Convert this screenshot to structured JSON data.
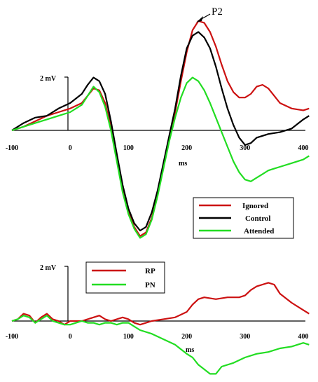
{
  "chart_data": [
    {
      "type": "line",
      "annotation": "P2",
      "y_scale_label": "2 mV",
      "xlabel": "ms",
      "xlim": [
        -100,
        400
      ],
      "x_ticks": [
        "-100",
        "0",
        "100",
        "200",
        "300",
        "400"
      ],
      "legend_position": "bottom-right",
      "series": [
        {
          "name": "Ignored",
          "color": "#cc1111",
          "points": [
            [
              -100,
              0
            ],
            [
              -80,
              0.2
            ],
            [
              -60,
              0.5
            ],
            [
              -40,
              0.8
            ],
            [
              -20,
              1.0
            ],
            [
              0,
              1.2
            ],
            [
              20,
              1.5
            ],
            [
              30,
              1.9
            ],
            [
              40,
              2.3
            ],
            [
              50,
              2.2
            ],
            [
              60,
              1.5
            ],
            [
              70,
              0.2
            ],
            [
              80,
              -1.5
            ],
            [
              90,
              -3.2
            ],
            [
              100,
              -4.5
            ],
            [
              110,
              -5.3
            ],
            [
              120,
              -5.8
            ],
            [
              130,
              -5.6
            ],
            [
              140,
              -4.8
            ],
            [
              150,
              -3.5
            ],
            [
              160,
              -2.0
            ],
            [
              170,
              -0.5
            ],
            [
              180,
              1.0
            ],
            [
              190,
              2.7
            ],
            [
              200,
              4.3
            ],
            [
              210,
              5.5
            ],
            [
              220,
              6.0
            ],
            [
              230,
              5.9
            ],
            [
              240,
              5.4
            ],
            [
              250,
              4.6
            ],
            [
              260,
              3.6
            ],
            [
              270,
              2.7
            ],
            [
              280,
              2.1
            ],
            [
              290,
              1.8
            ],
            [
              300,
              1.8
            ],
            [
              310,
              2.0
            ],
            [
              320,
              2.4
            ],
            [
              330,
              2.5
            ],
            [
              340,
              2.3
            ],
            [
              350,
              1.9
            ],
            [
              360,
              1.5
            ],
            [
              380,
              1.2
            ],
            [
              400,
              1.1
            ],
            [
              410,
              1.2
            ]
          ]
        },
        {
          "name": "Control",
          "color": "#000000",
          "points": [
            [
              -100,
              0
            ],
            [
              -80,
              0.4
            ],
            [
              -60,
              0.7
            ],
            [
              -40,
              0.8
            ],
            [
              -20,
              1.2
            ],
            [
              0,
              1.5
            ],
            [
              20,
              2.0
            ],
            [
              30,
              2.5
            ],
            [
              40,
              2.9
            ],
            [
              50,
              2.7
            ],
            [
              60,
              2.0
            ],
            [
              70,
              0.5
            ],
            [
              80,
              -1.3
            ],
            [
              90,
              -3.0
            ],
            [
              100,
              -4.3
            ],
            [
              110,
              -5.1
            ],
            [
              120,
              -5.5
            ],
            [
              130,
              -5.3
            ],
            [
              140,
              -4.5
            ],
            [
              150,
              -3.3
            ],
            [
              160,
              -1.8
            ],
            [
              170,
              -0.3
            ],
            [
              180,
              1.2
            ],
            [
              190,
              3.0
            ],
            [
              200,
              4.5
            ],
            [
              210,
              5.2
            ],
            [
              220,
              5.4
            ],
            [
              230,
              5.1
            ],
            [
              240,
              4.5
            ],
            [
              250,
              3.5
            ],
            [
              260,
              2.3
            ],
            [
              270,
              1.2
            ],
            [
              280,
              0.3
            ],
            [
              290,
              -0.4
            ],
            [
              300,
              -0.8
            ],
            [
              310,
              -0.7
            ],
            [
              320,
              -0.4
            ],
            [
              340,
              -0.2
            ],
            [
              360,
              -0.1
            ],
            [
              380,
              0.1
            ],
            [
              400,
              0.6
            ],
            [
              410,
              0.8
            ]
          ]
        },
        {
          "name": "Attended",
          "color": "#22dd22",
          "points": [
            [
              -100,
              0
            ],
            [
              -80,
              0.2
            ],
            [
              -60,
              0.4
            ],
            [
              -40,
              0.6
            ],
            [
              -20,
              0.8
            ],
            [
              0,
              1.0
            ],
            [
              20,
              1.4
            ],
            [
              30,
              1.9
            ],
            [
              40,
              2.4
            ],
            [
              50,
              2.1
            ],
            [
              60,
              1.3
            ],
            [
              70,
              0.0
            ],
            [
              80,
              -1.7
            ],
            [
              90,
              -3.4
            ],
            [
              100,
              -4.6
            ],
            [
              110,
              -5.4
            ],
            [
              120,
              -5.9
            ],
            [
              130,
              -5.7
            ],
            [
              140,
              -4.9
            ],
            [
              150,
              -3.6
            ],
            [
              160,
              -2.1
            ],
            [
              170,
              -0.6
            ],
            [
              180,
              0.7
            ],
            [
              190,
              1.8
            ],
            [
              200,
              2.6
            ],
            [
              210,
              2.9
            ],
            [
              220,
              2.7
            ],
            [
              230,
              2.2
            ],
            [
              240,
              1.5
            ],
            [
              250,
              0.7
            ],
            [
              260,
              -0.1
            ],
            [
              270,
              -0.9
            ],
            [
              280,
              -1.7
            ],
            [
              290,
              -2.3
            ],
            [
              300,
              -2.7
            ],
            [
              310,
              -2.8
            ],
            [
              320,
              -2.6
            ],
            [
              330,
              -2.4
            ],
            [
              340,
              -2.2
            ],
            [
              350,
              -2.1
            ],
            [
              360,
              -2.0
            ],
            [
              380,
              -1.8
            ],
            [
              400,
              -1.6
            ],
            [
              410,
              -1.4
            ]
          ]
        }
      ]
    },
    {
      "type": "line",
      "y_scale_label": "2 mV",
      "xlabel": "ms",
      "xlim": [
        -100,
        400
      ],
      "x_ticks": [
        "-100",
        "0",
        "100",
        "200",
        "300",
        "400"
      ],
      "legend_position": "top-left",
      "series": [
        {
          "name": "RP",
          "color": "#cc1111",
          "points": [
            [
              -100,
              0
            ],
            [
              -90,
              0.1
            ],
            [
              -80,
              0.4
            ],
            [
              -70,
              0.3
            ],
            [
              -60,
              -0.1
            ],
            [
              -50,
              0.2
            ],
            [
              -40,
              0.4
            ],
            [
              -30,
              0.1
            ],
            [
              -20,
              0
            ],
            [
              -10,
              -0.2
            ],
            [
              0,
              0
            ],
            [
              10,
              0
            ],
            [
              20,
              0
            ],
            [
              30,
              0.1
            ],
            [
              40,
              0.2
            ],
            [
              50,
              0.3
            ],
            [
              60,
              0.1
            ],
            [
              70,
              0
            ],
            [
              80,
              0.1
            ],
            [
              90,
              0.2
            ],
            [
              100,
              0.1
            ],
            [
              110,
              -0.1
            ],
            [
              120,
              -0.2
            ],
            [
              140,
              0
            ],
            [
              160,
              0.1
            ],
            [
              180,
              0.2
            ],
            [
              200,
              0.5
            ],
            [
              210,
              0.9
            ],
            [
              220,
              1.2
            ],
            [
              230,
              1.3
            ],
            [
              250,
              1.2
            ],
            [
              270,
              1.3
            ],
            [
              290,
              1.3
            ],
            [
              300,
              1.4
            ],
            [
              310,
              1.7
            ],
            [
              320,
              1.9
            ],
            [
              340,
              2.1
            ],
            [
              350,
              2.0
            ],
            [
              360,
              1.5
            ],
            [
              380,
              1.0
            ],
            [
              400,
              0.6
            ],
            [
              410,
              0.4
            ]
          ]
        },
        {
          "name": "PN",
          "color": "#22dd22",
          "points": [
            [
              -100,
              0
            ],
            [
              -90,
              0.1
            ],
            [
              -80,
              0.3
            ],
            [
              -70,
              0.2
            ],
            [
              -60,
              -0.1
            ],
            [
              -50,
              0.1
            ],
            [
              -40,
              0.3
            ],
            [
              -30,
              0
            ],
            [
              -20,
              -0.1
            ],
            [
              -10,
              -0.2
            ],
            [
              0,
              -0.2
            ],
            [
              10,
              -0.1
            ],
            [
              20,
              0
            ],
            [
              30,
              -0.1
            ],
            [
              40,
              -0.1
            ],
            [
              50,
              -0.2
            ],
            [
              60,
              -0.1
            ],
            [
              70,
              -0.1
            ],
            [
              80,
              -0.2
            ],
            [
              90,
              -0.1
            ],
            [
              100,
              -0.1
            ],
            [
              110,
              -0.3
            ],
            [
              120,
              -0.5
            ],
            [
              140,
              -0.7
            ],
            [
              160,
              -1.0
            ],
            [
              180,
              -1.3
            ],
            [
              200,
              -1.8
            ],
            [
              210,
              -2.0
            ],
            [
              220,
              -2.4
            ],
            [
              240,
              -2.9
            ],
            [
              250,
              -2.9
            ],
            [
              260,
              -2.5
            ],
            [
              280,
              -2.3
            ],
            [
              300,
              -2.0
            ],
            [
              320,
              -1.8
            ],
            [
              340,
              -1.7
            ],
            [
              360,
              -1.5
            ],
            [
              380,
              -1.4
            ],
            [
              400,
              -1.2
            ],
            [
              410,
              -1.3
            ]
          ]
        }
      ]
    }
  ]
}
